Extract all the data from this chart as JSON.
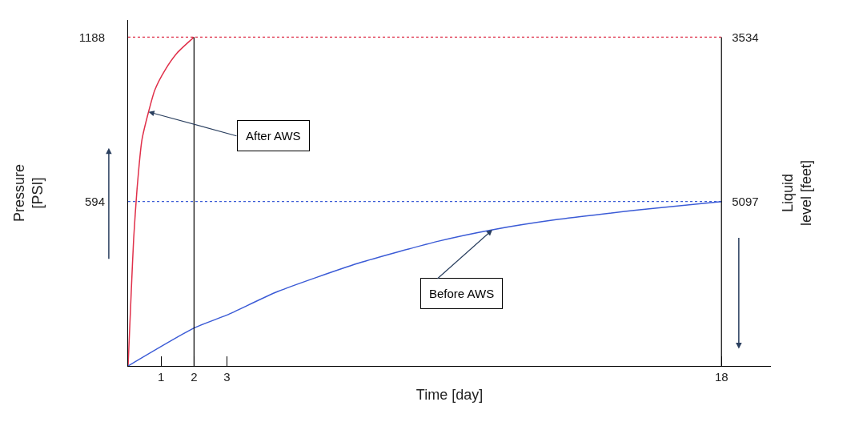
{
  "chart_data": {
    "type": "line",
    "xlabel": "Time [day]",
    "ylabel": "Pressure [PSI]",
    "y2label": "Liquid level [feet]",
    "xlim": [
      0,
      19.5
    ],
    "xticks": [
      1,
      2,
      3,
      18
    ],
    "ylim": [
      0,
      1250
    ],
    "yticks": [
      594,
      1188
    ],
    "y2lim": [
      6660,
      3371
    ],
    "y2ticks": [
      3534,
      5097
    ],
    "series": [
      {
        "color": "#e0304a",
        "x": [
          0,
          0.1,
          0.17,
          0.27,
          0.42,
          0.62,
          0.81,
          1.12,
          1.48,
          2
        ],
        "values": [
          0,
          280,
          462,
          637,
          817,
          918,
          997,
          1069,
          1130,
          1188
        ]
      },
      {
        "color": "#3b5bd6",
        "x": [
          0,
          2,
          3,
          4.54,
          6.98,
          9.42,
          11.05,
          13.07,
          15.51,
          18
        ],
        "values": [
          0,
          137,
          184,
          269,
          371,
          451,
          492,
          530,
          564,
          594
        ]
      }
    ],
    "ref_lines": [
      {
        "axis": "y",
        "value": 1188,
        "color": "#e0304a",
        "line_style": "dotted"
      },
      {
        "axis": "y",
        "value": 594,
        "color": "#3b5bd6",
        "line_style": "dotted"
      },
      {
        "axis": "x",
        "value": 2,
        "color": "#000000",
        "line_style": "solid"
      },
      {
        "axis": "x",
        "value": 18,
        "color": "#000000",
        "line_style": "solid"
      }
    ],
    "annotations": [
      {
        "text": "After AWS",
        "x": 0.62,
        "y": 918
      },
      {
        "text": "Before AWS",
        "x": 11.05,
        "y": 492
      }
    ],
    "marker": "none",
    "line_style": "solid"
  }
}
